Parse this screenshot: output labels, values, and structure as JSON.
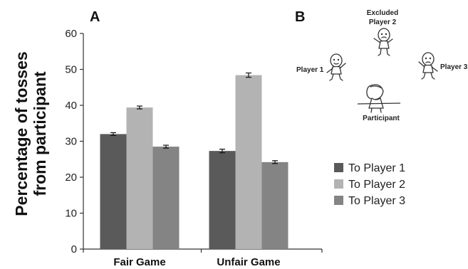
{
  "panels": {
    "a": "A",
    "b": "B"
  },
  "chart_data": {
    "type": "bar",
    "categories": [
      "Fair Game",
      "Unfair Game"
    ],
    "series": [
      {
        "name": "To Player 1",
        "values": [
          32.0,
          27.3
        ],
        "errors": [
          0.4,
          0.5
        ],
        "color": "#5a5a5a"
      },
      {
        "name": "To Player 2",
        "values": [
          39.4,
          48.4
        ],
        "errors": [
          0.4,
          0.6
        ],
        "color": "#b3b3b3"
      },
      {
        "name": "To Player 3",
        "values": [
          28.5,
          24.2
        ],
        "errors": [
          0.4,
          0.4
        ],
        "color": "#848484"
      }
    ],
    "ylabel_line1": "Percentage of tosses",
    "ylabel_line2": "from participant",
    "xlabel": "",
    "ylim": [
      0,
      60
    ],
    "yticks": [
      0,
      10,
      20,
      30,
      40,
      50,
      60
    ],
    "grid": false,
    "legend": "right"
  },
  "diagram": {
    "excluded_line1": "Excluded",
    "excluded_line2": "Player 2",
    "player1": "Player 1",
    "player3": "Player 3",
    "participant": "Participant"
  }
}
